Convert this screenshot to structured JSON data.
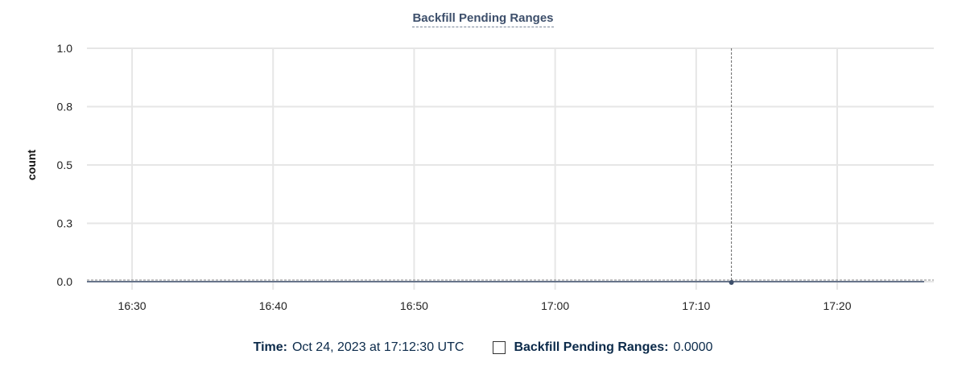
{
  "chart_data": {
    "type": "line",
    "title": "Backfill Pending Ranges",
    "xlabel": "",
    "ylabel": "count",
    "x_range": [
      "16:26:48",
      "17:26:51"
    ],
    "ylim": [
      0,
      1.0
    ],
    "y_ticks": [
      "0.0",
      "0.3",
      "0.5",
      "0.8",
      "1.0"
    ],
    "y_tick_values": [
      0,
      0.25,
      0.5,
      0.75,
      1.0
    ],
    "x_ticks": [
      "16:30",
      "16:40",
      "16:50",
      "17:00",
      "17:10",
      "17:20"
    ],
    "grid": true,
    "series": [
      {
        "name": "Backfill Pending Ranges",
        "color": "#3d4f6b",
        "x": [
          "16:26:48",
          "16:40:00",
          "17:00:00",
          "17:12:30",
          "17:26:10"
        ],
        "values": [
          0,
          0,
          0,
          0,
          0
        ]
      }
    ],
    "crosshair": {
      "x": "17:12:30",
      "y": 0
    }
  },
  "tooltip": {
    "time_label": "Time:",
    "time_value": "Oct 24, 2023 at 17:12:30 UTC",
    "series_label": "Backfill Pending Ranges:",
    "series_value": "0.0000"
  }
}
